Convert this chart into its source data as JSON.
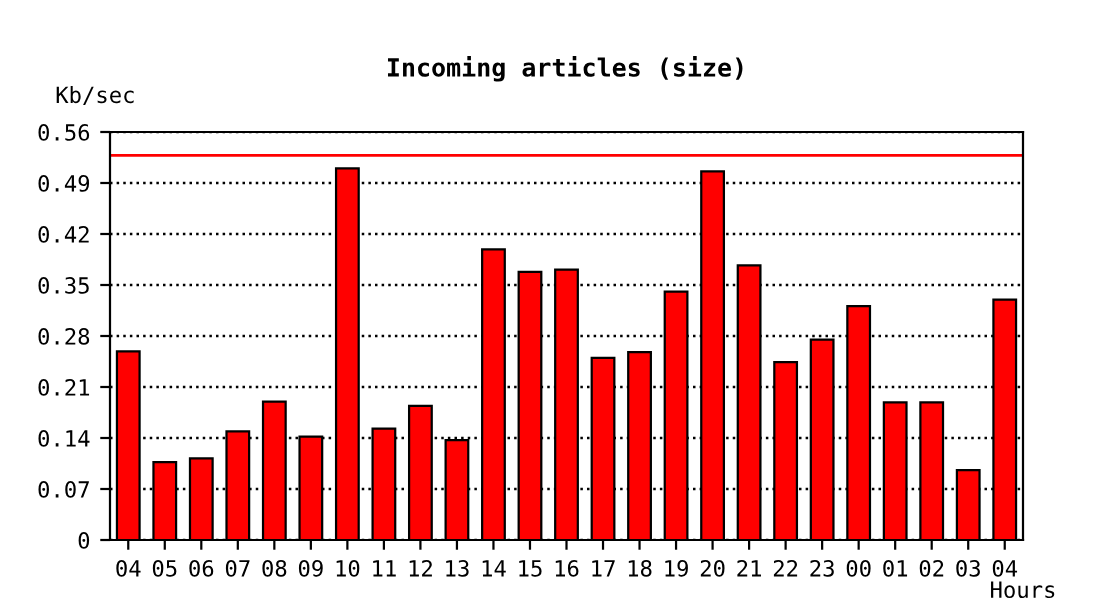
{
  "chart_data": {
    "type": "bar",
    "title": "Incoming articles (size)",
    "xlabel": "Hours",
    "ylabel": "Kb/sec",
    "categories": [
      "04",
      "05",
      "06",
      "07",
      "08",
      "09",
      "10",
      "11",
      "12",
      "13",
      "14",
      "15",
      "16",
      "17",
      "18",
      "19",
      "20",
      "21",
      "22",
      "23",
      "00",
      "01",
      "02",
      "03",
      "04"
    ],
    "values": [
      0.259,
      0.107,
      0.112,
      0.149,
      0.19,
      0.142,
      0.51,
      0.153,
      0.184,
      0.137,
      0.399,
      0.368,
      0.371,
      0.25,
      0.258,
      0.341,
      0.506,
      0.377,
      0.244,
      0.275,
      0.321,
      0.189,
      0.189,
      0.096,
      0.33
    ],
    "color": "#ff0000",
    "ylim": [
      0,
      0.56
    ],
    "yticks": [
      0,
      0.07,
      0.14,
      0.21,
      0.28,
      0.35,
      0.42,
      0.49,
      0.56
    ],
    "grid": "y",
    "line_style": "dotted",
    "ref_lines": [
      {
        "axis": "y",
        "value": 0.528,
        "color": "#ff0000"
      }
    ]
  }
}
